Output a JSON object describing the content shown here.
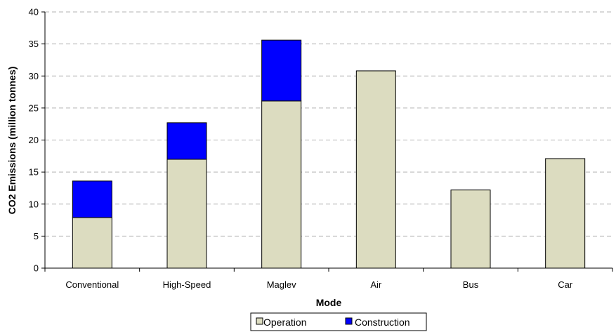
{
  "chart_data": {
    "type": "bar",
    "stacked": true,
    "categories": [
      "Conventional",
      "High-Speed",
      "Maglev",
      "Air",
      "Bus",
      "Car"
    ],
    "series": [
      {
        "name": "Operation",
        "color": "#dcdcc0",
        "values": [
          7.9,
          17.0,
          26.1,
          30.8,
          12.2,
          17.1
        ]
      },
      {
        "name": "Construction",
        "color": "#0000ff",
        "values": [
          5.7,
          5.7,
          9.5,
          0,
          0,
          0
        ]
      }
    ],
    "xlabel": "Mode",
    "ylabel": "CO2 Emissions (million tonnes)",
    "ylim": [
      0,
      40
    ],
    "yticks": [
      0,
      5,
      10,
      15,
      20,
      25,
      30,
      35,
      40
    ],
    "grid": "horizontal-dashed",
    "legend_position": "bottom-center"
  }
}
